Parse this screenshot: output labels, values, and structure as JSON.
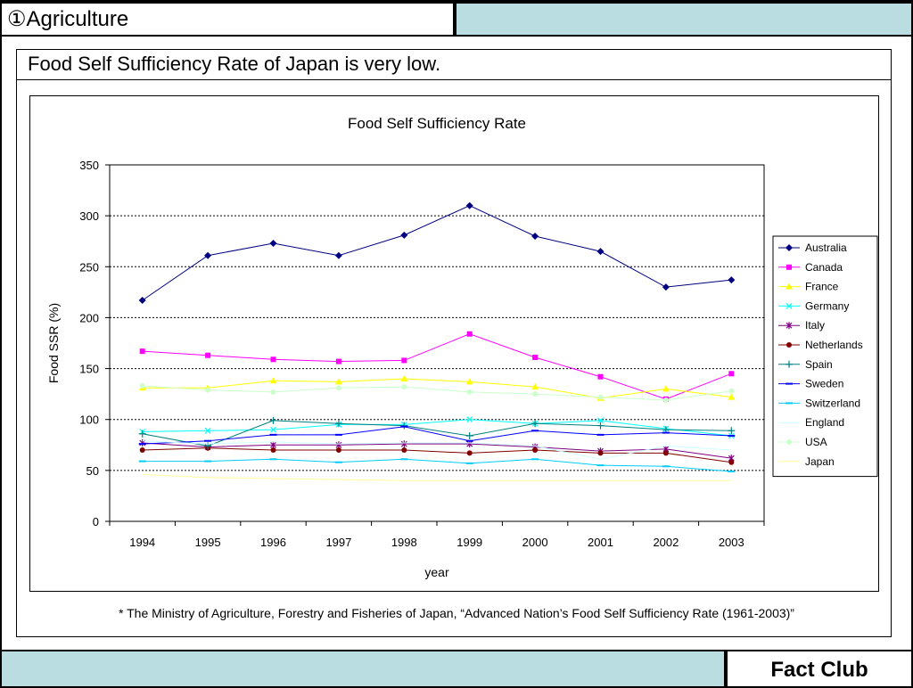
{
  "header": {
    "section_title": "①Agriculture"
  },
  "slide": {
    "headline": "Food Self Sufficiency Rate of Japan is very low."
  },
  "source_note": "* The Ministry of Agriculture, Forestry and Fisheries of Japan, “Advanced Nation’s Food Self Sufficiency Rate (1961-2003)”",
  "footer": {
    "brand": "Fact Club"
  },
  "chart_data": {
    "type": "line",
    "title": "Food Self Sufficiency Rate",
    "xlabel": "year",
    "ylabel": "Food SSR (%)",
    "categories": [
      "1994",
      "1995",
      "1996",
      "1997",
      "1998",
      "1999",
      "2000",
      "2001",
      "2002",
      "2003"
    ],
    "ylim": [
      0,
      350
    ],
    "yticks": [
      0,
      50,
      100,
      150,
      200,
      250,
      300,
      350
    ],
    "grid": "horizontal-dotted",
    "legend": "right",
    "series": [
      {
        "name": "Australia",
        "color": "#000080",
        "marker": "diamond",
        "values": [
          217,
          261,
          273,
          261,
          281,
          310,
          280,
          265,
          230,
          237
        ]
      },
      {
        "name": "Canada",
        "color": "#ff00ff",
        "marker": "square",
        "values": [
          167,
          163,
          159,
          157,
          158,
          184,
          161,
          142,
          120,
          145
        ]
      },
      {
        "name": "France",
        "color": "#ffff00",
        "marker": "triangle",
        "values": [
          131,
          131,
          138,
          137,
          140,
          137,
          132,
          121,
          130,
          122
        ]
      },
      {
        "name": "Germany",
        "color": "#00ffff",
        "marker": "x",
        "values": [
          88,
          89,
          90,
          95,
          95,
          100,
          96,
          99,
          91,
          84
        ]
      },
      {
        "name": "Italy",
        "color": "#800080",
        "marker": "star",
        "values": [
          77,
          73,
          75,
          75,
          76,
          76,
          73,
          69,
          71,
          62
        ]
      },
      {
        "name": "Netherlands",
        "color": "#800000",
        "marker": "circle",
        "values": [
          70,
          72,
          70,
          70,
          70,
          67,
          70,
          67,
          67,
          58
        ]
      },
      {
        "name": "Spain",
        "color": "#008080",
        "marker": "plus",
        "values": [
          86,
          74,
          99,
          96,
          94,
          84,
          96,
          94,
          90,
          89
        ]
      },
      {
        "name": "Sweden",
        "color": "#0000ff",
        "marker": "dash",
        "values": [
          76,
          79,
          85,
          85,
          93,
          79,
          89,
          85,
          87,
          84
        ]
      },
      {
        "name": "Switzerland",
        "color": "#00ccff",
        "marker": "dash",
        "values": [
          59,
          59,
          61,
          58,
          61,
          57,
          61,
          55,
          54,
          49
        ]
      },
      {
        "name": "England",
        "color": "#ccffff",
        "marker": "none",
        "values": [
          79,
          76,
          78,
          76,
          77,
          77,
          74,
          61,
          74,
          70
        ]
      },
      {
        "name": "USA",
        "color": "#ccffcc",
        "marker": "circle",
        "values": [
          133,
          129,
          127,
          131,
          132,
          127,
          125,
          122,
          119,
          128
        ]
      },
      {
        "name": "Japan",
        "color": "#ffff99",
        "marker": "none",
        "values": [
          46,
          43,
          42,
          41,
          40,
          40,
          40,
          40,
          40,
          40
        ]
      }
    ]
  }
}
